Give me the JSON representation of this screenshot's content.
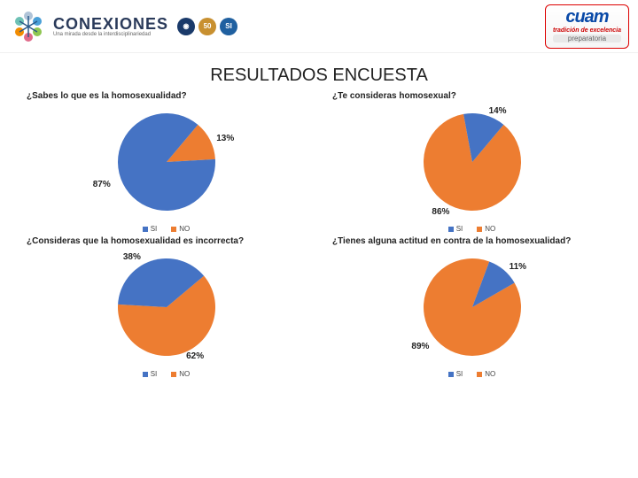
{
  "header": {
    "conexiones_title": "CONEXIONES",
    "conexiones_sub": "Una mirada desde la interdisciplinariedad",
    "cuam_top": "cuam",
    "cuam_mid": "tradición de excelencia",
    "cuam_bot": "preparatoria"
  },
  "page_title": "RESULTADOS ENCUESTA",
  "colors": {
    "si": "#4573c4",
    "no": "#ed7d31",
    "bg": "#ffffff",
    "text": "#222222"
  },
  "legend": {
    "si": "SI",
    "no": "NO"
  },
  "charts": [
    {
      "question": "¿Sabes lo que es la homosexualidad?",
      "type": "pie",
      "si_pct": 87,
      "no_pct": 13,
      "si_label": "87%",
      "no_label": "13%",
      "start_angle": 40
    },
    {
      "question": "¿Te consideras homosexual?",
      "type": "pie",
      "si_pct": 14,
      "no_pct": 86,
      "si_label": "14%",
      "no_label": "86%",
      "start_angle": 40
    },
    {
      "question": "¿Consideras que la homosexualidad es incorrecta?",
      "type": "pie",
      "si_pct": 38,
      "no_pct": 62,
      "si_label": "38%",
      "no_label": "62%",
      "start_angle": 50
    },
    {
      "question": "¿Tienes alguna actitud en contra de la homosexualidad?",
      "type": "pie",
      "si_pct": 11,
      "no_pct": 89,
      "si_label": "11%",
      "no_label": "89%",
      "start_angle": 60
    }
  ]
}
